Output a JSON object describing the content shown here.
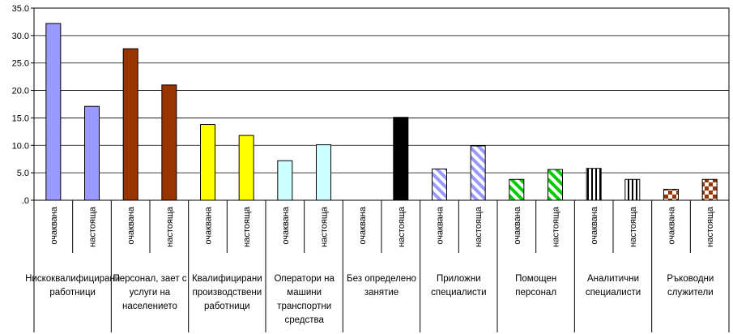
{
  "chart_data": {
    "type": "bar",
    "title": "",
    "xlabel": "",
    "ylabel": "",
    "ylim": [
      0,
      35
    ],
    "yticks": [
      ".0",
      "5.0",
      "10.0",
      "15.0",
      "20.0",
      "25.0",
      "30.0",
      "35.0"
    ],
    "grid": true,
    "legend": "none",
    "subcategories": [
      "очаквана",
      "настояща"
    ],
    "groups": [
      {
        "label": [
          "Нискоквалифицирани",
          "работници"
        ],
        "values": [
          32.2,
          17.1
        ],
        "color": "#9999ff",
        "pattern": "solid"
      },
      {
        "label": [
          "Персонал, зает с",
          "услуги на",
          "населението"
        ],
        "values": [
          27.6,
          21.0
        ],
        "color": "#993300",
        "pattern": "solid"
      },
      {
        "label": [
          "Квалифицирани",
          "производствени",
          "работници"
        ],
        "values": [
          13.8,
          11.8
        ],
        "color": "#ffff00",
        "pattern": "solid"
      },
      {
        "label": [
          "Оператори на",
          "машини",
          "транспортни",
          "средства"
        ],
        "values": [
          7.2,
          10.1
        ],
        "color": "#ccffff",
        "pattern": "solid"
      },
      {
        "label": [
          "Без определено",
          "занятие"
        ],
        "values": [
          0,
          15.1
        ],
        "color": "#000000",
        "pattern": "solid"
      },
      {
        "label": [
          "Приложни",
          "специалисти"
        ],
        "values": [
          5.7,
          9.9
        ],
        "color": "#9999ff",
        "pattern": "diagonal"
      },
      {
        "label": [
          "Помощен",
          "персонал"
        ],
        "values": [
          3.8,
          5.6
        ],
        "color": "#00cc00",
        "pattern": "diagonal"
      },
      {
        "label": [
          "Аналитични",
          "специалисти"
        ],
        "values": [
          5.8,
          3.8
        ],
        "color": "#000000",
        "pattern": "vertical"
      },
      {
        "label": [
          "Ръководни",
          "служители"
        ],
        "values": [
          2.0,
          3.8
        ],
        "color": "#993300",
        "pattern": "checker"
      }
    ]
  }
}
